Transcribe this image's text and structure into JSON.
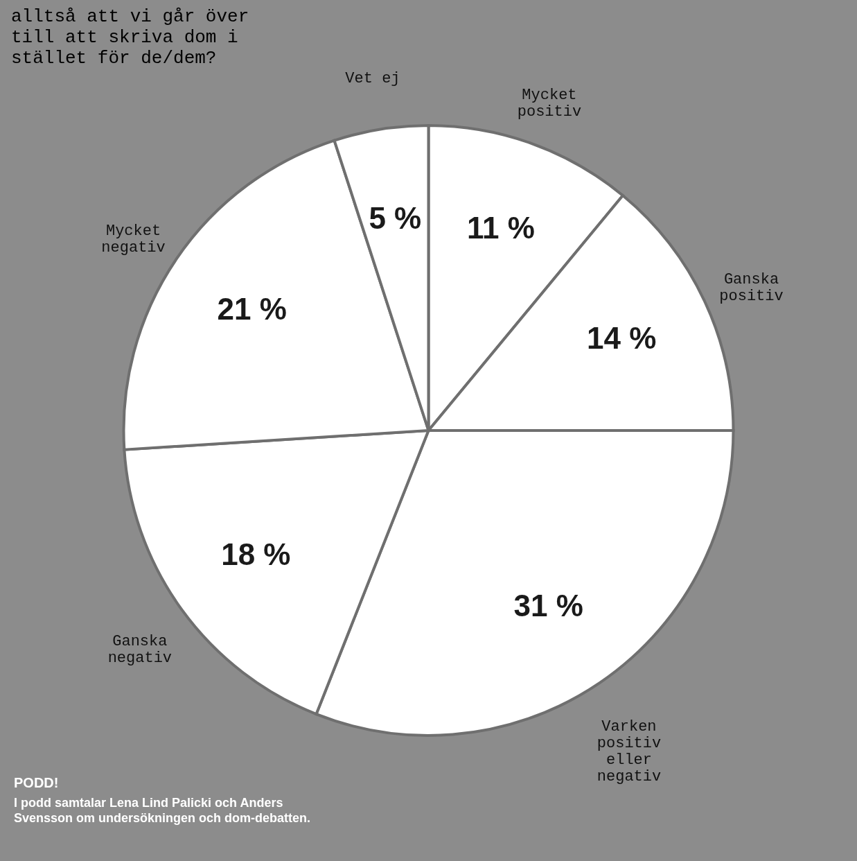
{
  "chart_data": {
    "type": "pie",
    "title": "alltså att vi går över till att skriva dom i stället för de/dem?",
    "categories": [
      "Mycket positiv",
      "Ganska positiv",
      "Varken positiv eller negativ",
      "Ganska negativ",
      "Mycket negativ",
      "Vet ej"
    ],
    "values": [
      11,
      14,
      31,
      18,
      21,
      5
    ],
    "colors": [
      "#ffffff",
      "#ffffff",
      "#ffffff",
      "#ffffff",
      "#ffffff",
      "#ffffff"
    ],
    "value_labels": [
      "11 %",
      "14 %",
      "31 %",
      "18 %",
      "21 %",
      "5 %"
    ],
    "annotations": [
      "PODD!",
      "I podd samtalar Lena Lind Palicki och Anders Svensson om undersökningen och dom-debatten."
    ]
  }
}
